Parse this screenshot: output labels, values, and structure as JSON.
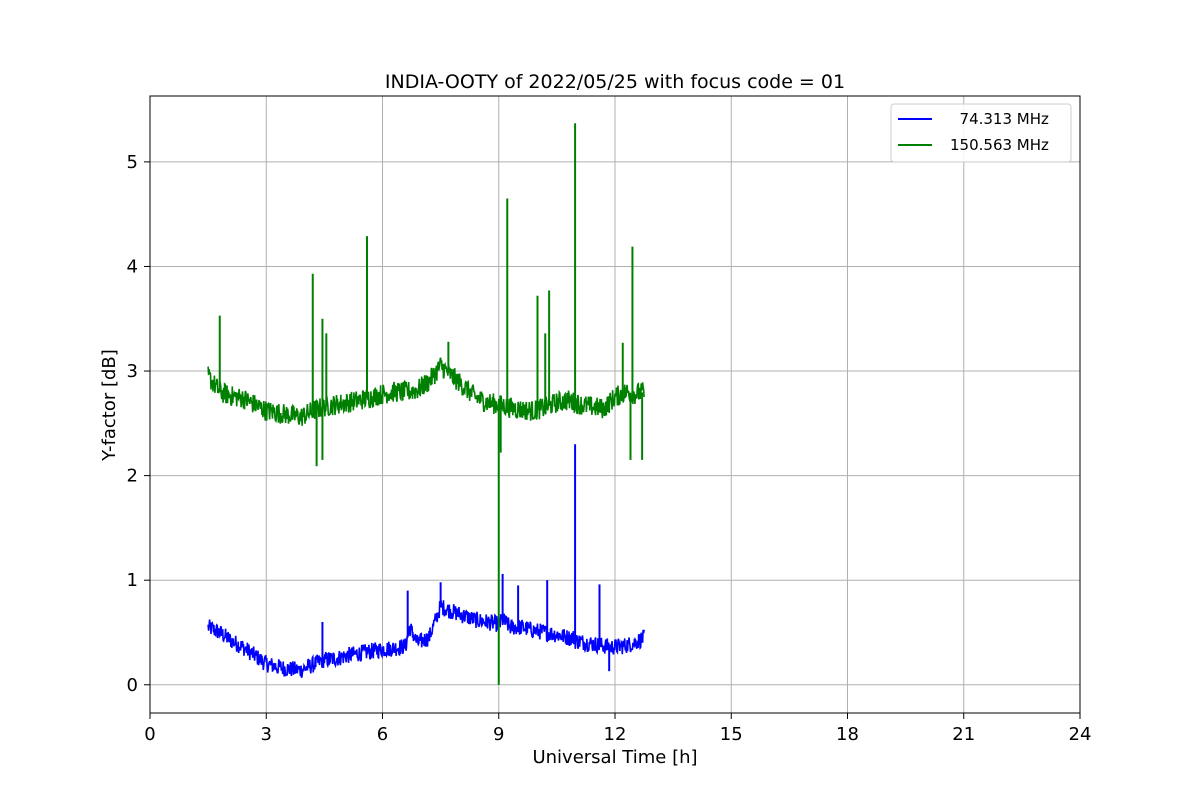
{
  "chart_data": {
    "type": "line",
    "title": "INDIA-OOTY of 2022/05/25 with focus code = 01",
    "xlabel": "Universal Time [h]",
    "ylabel": "Y-factor [dB]",
    "xlim": [
      0,
      24
    ],
    "ylim": [
      -0.27,
      5.63
    ],
    "xticks": [
      0,
      3,
      6,
      9,
      12,
      15,
      18,
      21,
      24
    ],
    "yticks": [
      0,
      1,
      2,
      3,
      4,
      5
    ],
    "grid": true,
    "legend_position": "top-right",
    "series": [
      {
        "name": "  74.313 MHz",
        "color": "#0000ff",
        "x": [
          1.5,
          1.8,
          2.1,
          2.4,
          2.7,
          3.0,
          3.3,
          3.6,
          3.9,
          4.2,
          4.5,
          4.8,
          5.1,
          5.4,
          5.7,
          6.0,
          6.3,
          6.6,
          6.7,
          6.9,
          7.2,
          7.5,
          7.8,
          8.1,
          8.4,
          8.7,
          9.0,
          9.1,
          9.3,
          9.6,
          9.9,
          10.2,
          10.5,
          10.8,
          10.97,
          11.0,
          11.3,
          11.6,
          11.9,
          12.2,
          12.5,
          12.75
        ],
        "y": [
          0.55,
          0.5,
          0.42,
          0.36,
          0.28,
          0.2,
          0.17,
          0.15,
          0.14,
          0.19,
          0.24,
          0.25,
          0.28,
          0.3,
          0.32,
          0.34,
          0.35,
          0.37,
          0.55,
          0.4,
          0.45,
          0.75,
          0.7,
          0.66,
          0.62,
          0.6,
          0.58,
          0.62,
          0.55,
          0.55,
          0.52,
          0.5,
          0.48,
          0.45,
          2.3,
          0.42,
          0.4,
          0.38,
          0.36,
          0.37,
          0.4,
          0.45
        ],
        "band": 0.08,
        "spikes": [
          {
            "x": 4.45,
            "y": 0.6
          },
          {
            "x": 6.65,
            "y": 0.9
          },
          {
            "x": 7.5,
            "y": 0.98
          },
          {
            "x": 9.1,
            "y": 1.06
          },
          {
            "x": 9.5,
            "y": 0.95
          },
          {
            "x": 10.25,
            "y": 1.0
          },
          {
            "x": 10.97,
            "y": 2.3
          },
          {
            "x": 11.6,
            "y": 0.96
          },
          {
            "x": 11.85,
            "y": 0.13,
            "dir": "down"
          }
        ]
      },
      {
        "name": "150.563 MHz",
        "color": "#008000",
        "x": [
          1.5,
          1.8,
          2.1,
          2.4,
          2.7,
          3.0,
          3.3,
          3.6,
          3.9,
          4.2,
          4.5,
          4.8,
          5.1,
          5.4,
          5.7,
          6.0,
          6.3,
          6.6,
          6.9,
          7.2,
          7.5,
          7.8,
          8.1,
          8.4,
          8.7,
          9.0,
          9.3,
          9.6,
          9.9,
          10.2,
          10.5,
          10.8,
          11.1,
          11.4,
          11.7,
          12.0,
          12.3,
          12.5,
          12.75
        ],
        "y": [
          2.95,
          2.8,
          2.76,
          2.74,
          2.68,
          2.62,
          2.6,
          2.58,
          2.56,
          2.62,
          2.66,
          2.68,
          2.7,
          2.72,
          2.75,
          2.78,
          2.8,
          2.8,
          2.82,
          2.9,
          3.05,
          2.95,
          2.85,
          2.75,
          2.7,
          2.68,
          2.65,
          2.63,
          2.62,
          2.65,
          2.7,
          2.72,
          2.68,
          2.66,
          2.64,
          2.75,
          2.8,
          2.78,
          2.8
        ],
        "band": 0.1,
        "spikes": [
          {
            "x": 1.8,
            "y": 3.53
          },
          {
            "x": 4.2,
            "y": 3.93
          },
          {
            "x": 4.3,
            "y": 2.09,
            "dir": "down"
          },
          {
            "x": 4.45,
            "y": 3.5
          },
          {
            "x": 4.45,
            "y": 2.15,
            "dir": "down"
          },
          {
            "x": 4.55,
            "y": 3.36
          },
          {
            "x": 5.6,
            "y": 4.29
          },
          {
            "x": 7.7,
            "y": 3.28
          },
          {
            "x": 9.0,
            "y": 0.0,
            "dir": "down"
          },
          {
            "x": 9.05,
            "y": 2.22,
            "dir": "down"
          },
          {
            "x": 9.22,
            "y": 4.65
          },
          {
            "x": 10.0,
            "y": 3.72
          },
          {
            "x": 10.2,
            "y": 3.36
          },
          {
            "x": 10.3,
            "y": 3.77
          },
          {
            "x": 10.97,
            "y": 5.37
          },
          {
            "x": 12.2,
            "y": 3.27
          },
          {
            "x": 12.45,
            "y": 4.19
          },
          {
            "x": 12.4,
            "y": 2.15,
            "dir": "down"
          },
          {
            "x": 12.7,
            "y": 2.15,
            "dir": "down"
          }
        ]
      }
    ]
  }
}
